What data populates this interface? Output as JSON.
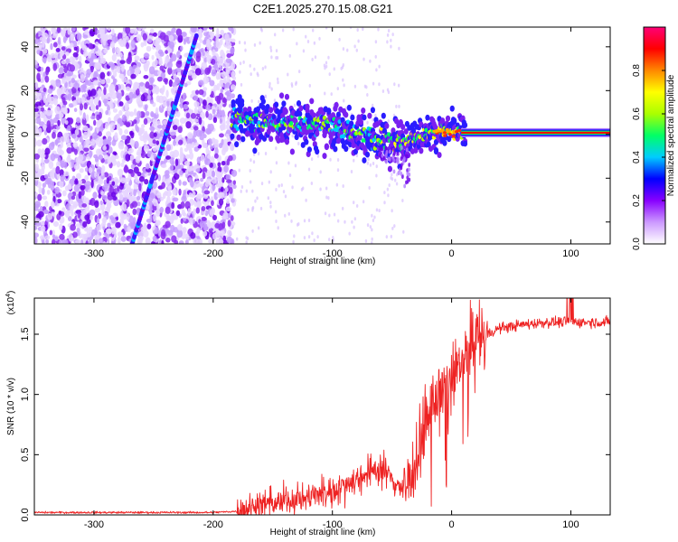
{
  "title": "C2E1.2025.270.15.08.G21",
  "chart_data": [
    {
      "type": "heatmap",
      "name": "spectrogram",
      "title": "C2E1.2025.270.15.08.G21",
      "xlabel": "Height of straight line (km)",
      "ylabel": "Frequency (Hz)",
      "xlim": [
        -350,
        133
      ],
      "ylim": [
        -50,
        49
      ],
      "xticks": [
        -300,
        -200,
        -100,
        0,
        100
      ],
      "yticks": [
        -40,
        -20,
        0,
        20,
        40
      ],
      "colorbar": {
        "label": "Normalized spectral amplitude",
        "range": [
          0,
          1
        ],
        "ticks": [
          "0.0",
          "0.2",
          "0.4",
          "0.6",
          "0.8"
        ],
        "colors": [
          "#ffffff",
          "#cc99ff",
          "#8800ff",
          "#0000ff",
          "#00ccff",
          "#00ff66",
          "#aaff00",
          "#ffff00",
          "#ff8800",
          "#ff0000",
          "#ff0077"
        ]
      },
      "ridge": {
        "x": [
          -180,
          -160,
          -140,
          -120,
          -100,
          -80,
          -60,
          -50,
          -40,
          -30,
          -20,
          -10,
          0,
          10,
          133
        ],
        "y": [
          7,
          6,
          5,
          4,
          3.5,
          1,
          -2,
          -4,
          -3,
          -1,
          0.5,
          1,
          2,
          1,
          0.5
        ]
      },
      "diagonal_track": {
        "x": [
          -268,
          -214
        ],
        "y": [
          -50,
          45
        ]
      }
    },
    {
      "type": "line",
      "name": "snr",
      "xlabel": "Height of straight line (km)",
      "ylabel": "SNR (10 * v/v)",
      "multiplier": "(x10",
      "multiplier_exp": "4",
      "multiplier_close": ")",
      "xlim": [
        -350,
        133
      ],
      "ylim": [
        0,
        1.8
      ],
      "xticks": [
        -300,
        -200,
        -100,
        0,
        100
      ],
      "yticks": [
        "0.0",
        "0.5",
        "1.0",
        "1.5"
      ],
      "series": [
        {
          "name": "SNR",
          "color": "#ee2222",
          "x": [
            -350,
            -200,
            -180,
            -160,
            -140,
            -120,
            -100,
            -80,
            -60,
            -50,
            -40,
            -30,
            -20,
            -10,
            0,
            10,
            20,
            40,
            60,
            80,
            100,
            133
          ],
          "y": [
            0.02,
            0.02,
            0.03,
            0.08,
            0.12,
            0.15,
            0.2,
            0.3,
            0.4,
            0.3,
            0.2,
            0.45,
            0.8,
            1.0,
            1.1,
            1.3,
            1.45,
            1.55,
            1.58,
            1.6,
            1.6,
            1.6
          ]
        }
      ]
    }
  ]
}
